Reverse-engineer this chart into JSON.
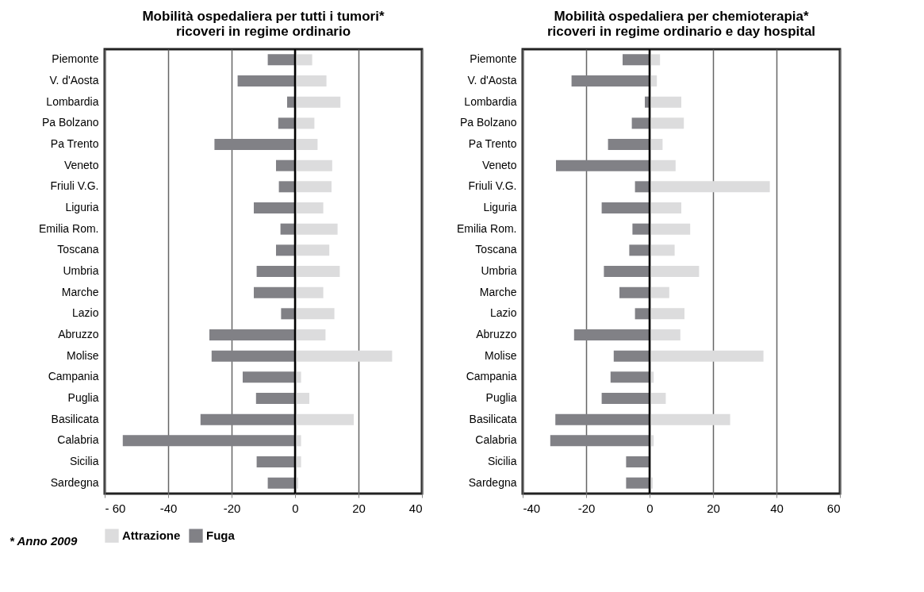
{
  "chart_data": [
    {
      "type": "bar",
      "orientation": "horizontal",
      "title": "Mobilità ospedaliera per tutti i tumori*\nricoveri in regime ordinario",
      "categories": [
        "Piemonte",
        "V. d'Aosta",
        "Lombardia",
        "Pa Bolzano",
        "Pa Trento",
        "Veneto",
        "Friuli V.G.",
        "Liguria",
        "Emilia Rom.",
        "Toscana",
        "Umbria",
        "Marche",
        "Lazio",
        "Abruzzo",
        "Molise",
        "Campania",
        "Puglia",
        "Basilicata",
        "Calabria",
        "Sicilia",
        "Sardegna"
      ],
      "series": [
        {
          "name": "Attrazione",
          "color": "#dcdcdd",
          "values": [
            5.4,
            9.9,
            14.3,
            6.1,
            7.1,
            11.7,
            11.5,
            8.9,
            13.4,
            10.8,
            14.1,
            8.9,
            12.4,
            9.6,
            30.6,
            1.9,
            4.5,
            18.5,
            1.9,
            1.9,
            1.0
          ]
        },
        {
          "name": "Fuga",
          "color": "#818186",
          "values": [
            -8.6,
            -18.1,
            -2.5,
            -5.3,
            -25.4,
            -6.0,
            -5.1,
            -13.0,
            -4.6,
            -6.0,
            -12.1,
            -13.0,
            -4.4,
            -27.0,
            -26.3,
            -16.5,
            -12.3,
            -29.8,
            -54.3,
            -12.1,
            -8.6
          ]
        }
      ],
      "stacked": true,
      "xlim": [
        -60,
        40
      ],
      "xticks": [
        {
          "value": -60,
          "label": "- 60"
        },
        -40,
        -20,
        0,
        20,
        40
      ],
      "grid": "x",
      "legend": "bottom",
      "ref_lines": [
        {
          "axis": "x",
          "value": 0,
          "color": "#000000"
        }
      ],
      "annotations": [
        "* Anno 2009"
      ]
    },
    {
      "type": "bar",
      "orientation": "horizontal",
      "title": "Mobilità ospedaliera per chemioterapia*\nricoveri in regime ordinario e day hospital",
      "categories": [
        "Piemonte",
        "V. d'Aosta",
        "Lombardia",
        "Pa Bolzano",
        "Pa Trento",
        "Veneto",
        "Friuli V.G.",
        "Liguria",
        "Emilia Rom.",
        "Toscana",
        "Umbria",
        "Marche",
        "Lazio",
        "Abruzzo",
        "Molise",
        "Campania",
        "Puglia",
        "Basilicata",
        "Calabria",
        "Sicilia",
        "Sardegna"
      ],
      "series": [
        {
          "color": "#dcdcdd",
          "values": [
            3.3,
            2.3,
            10.0,
            10.8,
            4.1,
            8.2,
            37.9,
            10.0,
            12.8,
            7.9,
            15.6,
            6.2,
            11.0,
            9.7,
            35.9,
            1.3,
            5.1,
            25.4,
            1.3,
            null,
            1.0
          ]
        },
        {
          "color": "#818186",
          "values": [
            -8.5,
            -24.6,
            -1.5,
            -5.6,
            -13.1,
            -29.5,
            -4.6,
            -15.1,
            -5.4,
            -6.4,
            -14.4,
            -9.5,
            -4.6,
            -23.8,
            -11.3,
            -12.3,
            -15.1,
            -29.7,
            -31.3,
            -7.4,
            -7.4
          ]
        }
      ],
      "stacked": true,
      "xlim": [
        -40,
        60
      ],
      "xticks": [
        -40,
        -20,
        0,
        20,
        40,
        60
      ],
      "grid": "x",
      "ref_lines": [
        {
          "axis": "x",
          "value": 0,
          "color": "#000000"
        }
      ]
    }
  ]
}
